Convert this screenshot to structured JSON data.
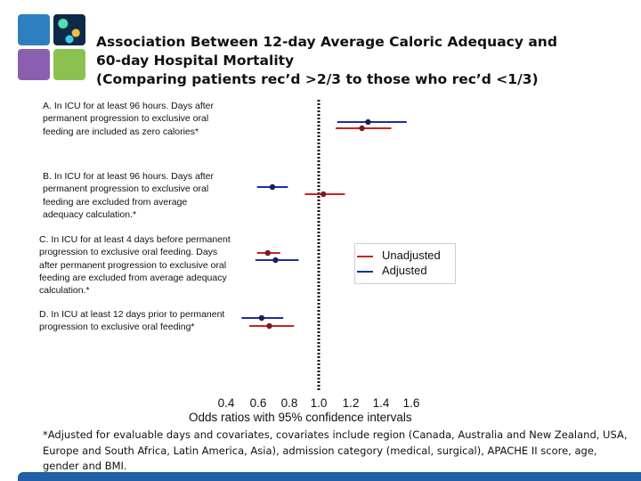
{
  "title_lines": [
    "Association Between 12-day Average Caloric Adequacy and",
    "60-day Hospital Mortality",
    "(Comparing patients rec’d >2/3 to those who rec’d <1/3)"
  ],
  "chart_data": {
    "type": "forest",
    "xlabel": "Odds ratios with 95% confidence intervals",
    "xticks": [
      "0.4",
      "0.6",
      "0.8",
      "1.0",
      "1.2",
      "1.4",
      "1.6"
    ],
    "xlim": [
      0.4,
      1.6
    ],
    "reference_line": 1.0,
    "series": [
      {
        "name": "Unadjusted",
        "color": "#cc2222"
      },
      {
        "name": "Adjusted",
        "color": "#1c2f9e"
      }
    ],
    "categories": [
      {
        "label": "A. In ICU for at least 96 hours. Days after permanent progression to exclusive oral feeding are included as zero calories*",
        "estimates": [
          {
            "series": "Adjusted",
            "or": 1.32,
            "lo": 1.12,
            "hi": 1.57
          },
          {
            "series": "Unadjusted",
            "or": 1.28,
            "lo": 1.11,
            "hi": 1.47
          }
        ]
      },
      {
        "label": "B. In ICU for at least 96 hours. Days after permanent progression to exclusive oral feeding are excluded from average adequacy calculation.*",
        "estimates": [
          {
            "series": "Adjusted",
            "or": 0.7,
            "lo": 0.6,
            "hi": 0.8
          },
          {
            "series": "Unadjusted",
            "or": 1.03,
            "lo": 0.91,
            "hi": 1.17
          }
        ]
      },
      {
        "label": "C. In ICU for at least 4 days before permanent progression to exclusive oral feeding. Days after permanent progression to exclusive oral feeding are excluded from average adequacy calculation.*",
        "estimates": [
          {
            "series": "Unadjusted",
            "or": 0.67,
            "lo": 0.6,
            "hi": 0.75
          },
          {
            "series": "Adjusted",
            "or": 0.72,
            "lo": 0.59,
            "hi": 0.87
          }
        ]
      },
      {
        "label": "D. In ICU at least 12 days prior to permanent progression to exclusive oral feeding*",
        "estimates": [
          {
            "series": "Adjusted",
            "or": 0.63,
            "lo": 0.5,
            "hi": 0.77
          },
          {
            "series": "Unadjusted",
            "or": 0.68,
            "lo": 0.55,
            "hi": 0.84
          }
        ]
      }
    ]
  },
  "footnote": "*Adjusted for evaluable days and covariates, covariates include region (Canada, Australia and New Zealand, USA, Europe and South Africa, Latin America, Asia), admission category (medical, surgical), APACHE II score, age, gender and BMI.",
  "colors": {
    "accent_bar": "#1f5fa8"
  }
}
